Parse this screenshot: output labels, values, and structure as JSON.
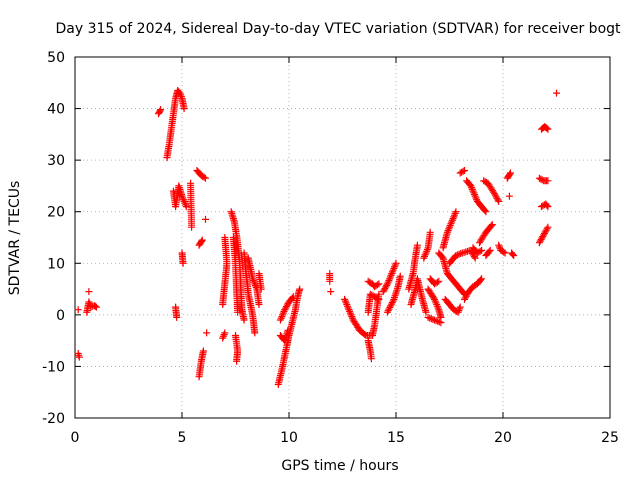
{
  "chart_data": {
    "type": "scatter",
    "title": "Day 315 of 2024, Sidereal Day-to-day VTEC variation (SDTVAR) for receiver bogt",
    "xlabel": "GPS time / hours",
    "ylabel": "SDTVAR / TECUs",
    "xlim": [
      0,
      25
    ],
    "ylim": [
      -20,
      50
    ],
    "xticks": [
      0,
      5,
      10,
      15,
      20,
      25
    ],
    "yticks": [
      -20,
      -10,
      0,
      10,
      20,
      30,
      40,
      50
    ],
    "xtick_labels": [
      "0",
      "5",
      "10",
      "15",
      "20",
      "25"
    ],
    "ytick_labels": [
      "-20",
      "-10",
      "0",
      "10",
      "20",
      "30",
      "40",
      "50"
    ],
    "grid": true,
    "marker": "+",
    "color": "#ff0000",
    "segments": [
      [
        [
          0.15,
          1.0
        ]
      ],
      [
        [
          0.15,
          -7.5
        ],
        [
          0.2,
          -8.2
        ]
      ],
      [
        [
          0.55,
          0.5
        ],
        [
          0.65,
          2.5
        ],
        [
          0.75,
          1.5
        ],
        [
          0.9,
          1.8
        ],
        [
          1.0,
          1.5
        ]
      ],
      [
        [
          0.65,
          4.5
        ]
      ],
      [
        [
          3.9,
          39.0
        ],
        [
          4.0,
          39.8
        ]
      ],
      [
        [
          4.3,
          30.5
        ],
        [
          4.4,
          33.0
        ],
        [
          4.5,
          36.0
        ],
        [
          4.6,
          39.0
        ],
        [
          4.7,
          42.0
        ],
        [
          4.8,
          43.5
        ],
        [
          4.9,
          43.0
        ],
        [
          5.0,
          42.0
        ],
        [
          5.1,
          40.0
        ]
      ],
      [
        [
          4.6,
          24.0
        ],
        [
          4.7,
          21.0
        ],
        [
          4.85,
          25.0
        ],
        [
          5.0,
          23.0
        ],
        [
          5.2,
          21.0
        ]
      ],
      [
        [
          4.7,
          1.5
        ],
        [
          4.75,
          -0.5
        ]
      ],
      [
        [
          5.0,
          12.0
        ],
        [
          5.05,
          10.0
        ]
      ],
      [
        [
          5.4,
          25.5
        ],
        [
          5.45,
          17.0
        ]
      ],
      [
        [
          5.7,
          28.0
        ],
        [
          5.9,
          27.0
        ],
        [
          6.1,
          26.5
        ]
      ],
      [
        [
          5.8,
          13.5
        ],
        [
          5.95,
          14.5
        ]
      ],
      [
        [
          6.1,
          18.5
        ]
      ],
      [
        [
          6.15,
          -3.5
        ]
      ],
      [
        [
          5.8,
          -12.0
        ],
        [
          5.9,
          -9.0
        ],
        [
          6.0,
          -7.0
        ]
      ],
      [
        [
          6.9,
          -4.5
        ],
        [
          7.0,
          -3.5
        ]
      ],
      [
        [
          6.9,
          2.0
        ],
        [
          7.0,
          6.0
        ],
        [
          7.1,
          10.0
        ],
        [
          7.0,
          15.0
        ]
      ],
      [
        [
          7.3,
          20.0
        ],
        [
          7.45,
          18.0
        ],
        [
          7.6,
          14.0
        ],
        [
          7.7,
          10.0
        ],
        [
          7.75,
          5.0
        ],
        [
          7.8,
          1.0
        ],
        [
          7.9,
          -1.0
        ]
      ],
      [
        [
          7.4,
          15.0
        ],
        [
          7.5,
          10.0
        ],
        [
          7.55,
          5.0
        ],
        [
          7.6,
          0.5
        ]
      ],
      [
        [
          7.5,
          -4.0
        ],
        [
          7.6,
          -7.0
        ],
        [
          7.55,
          -9.0
        ]
      ],
      [
        [
          7.9,
          12.0
        ],
        [
          8.0,
          8.0
        ],
        [
          8.1,
          4.0
        ],
        [
          8.3,
          0.0
        ],
        [
          8.4,
          -3.5
        ]
      ],
      [
        [
          8.1,
          11.0
        ],
        [
          8.3,
          7.0
        ],
        [
          8.5,
          5.0
        ],
        [
          8.6,
          2.0
        ]
      ],
      [
        [
          8.6,
          8.0
        ],
        [
          8.7,
          5.0
        ]
      ],
      [
        [
          9.5,
          -13.5
        ],
        [
          9.7,
          -10.0
        ],
        [
          9.9,
          -6.0
        ],
        [
          10.0,
          -4.0
        ],
        [
          10.15,
          -1.5
        ],
        [
          10.3,
          1.0
        ],
        [
          10.4,
          3.5
        ],
        [
          10.5,
          5.0
        ]
      ],
      [
        [
          9.6,
          -1.0
        ],
        [
          9.8,
          1.0
        ],
        [
          10.0,
          2.5
        ],
        [
          10.2,
          3.5
        ]
      ],
      [
        [
          9.6,
          -4.0
        ],
        [
          9.8,
          -5.0
        ],
        [
          9.95,
          -3.0
        ]
      ],
      [
        [
          11.9,
          8.0
        ],
        [
          11.9,
          6.5
        ]
      ],
      [
        [
          11.95,
          4.5
        ]
      ],
      [
        [
          12.6,
          3.0
        ],
        [
          12.8,
          1.0
        ],
        [
          13.0,
          -1.0
        ],
        [
          13.3,
          -3.0
        ],
        [
          13.6,
          -4.0
        ],
        [
          13.9,
          -4.0
        ],
        [
          14.0,
          -2.0
        ],
        [
          14.1,
          1.0
        ],
        [
          14.2,
          4.0
        ]
      ],
      [
        [
          13.7,
          -5.0
        ],
        [
          13.8,
          -7.0
        ],
        [
          13.85,
          -8.5
        ]
      ],
      [
        [
          13.7,
          6.5
        ],
        [
          13.9,
          6.0
        ],
        [
          14.0,
          5.5
        ],
        [
          14.2,
          6.0
        ]
      ],
      [
        [
          13.7,
          0.5
        ],
        [
          13.8,
          4.0
        ],
        [
          14.0,
          3.5
        ],
        [
          14.2,
          3.0
        ]
      ],
      [
        [
          14.4,
          4.5
        ],
        [
          14.6,
          6.0
        ],
        [
          14.8,
          8.0
        ],
        [
          15.0,
          10.0
        ]
      ],
      [
        [
          14.6,
          0.5
        ],
        [
          14.9,
          3.0
        ],
        [
          15.1,
          5.5
        ],
        [
          15.2,
          7.5
        ]
      ],
      [
        [
          15.6,
          5.0
        ],
        [
          15.8,
          8.0
        ],
        [
          15.9,
          11.0
        ],
        [
          16.0,
          13.5
        ]
      ],
      [
        [
          15.7,
          2.0
        ],
        [
          15.9,
          5.0
        ],
        [
          16.0,
          7.0
        ],
        [
          16.2,
          3.5
        ],
        [
          16.4,
          0.5
        ]
      ],
      [
        [
          16.3,
          11.0
        ],
        [
          16.5,
          13.0
        ],
        [
          16.6,
          16.0
        ]
      ],
      [
        [
          16.5,
          5.0
        ],
        [
          16.8,
          3.0
        ],
        [
          17.0,
          1.0
        ],
        [
          17.1,
          -0.5
        ]
      ],
      [
        [
          16.6,
          7.0
        ],
        [
          16.8,
          6.0
        ],
        [
          17.0,
          6.5
        ]
      ],
      [
        [
          16.5,
          -0.5
        ],
        [
          16.8,
          -1.0
        ],
        [
          17.1,
          -1.5
        ]
      ],
      [
        [
          17.0,
          12.0
        ],
        [
          17.2,
          11.0
        ],
        [
          17.4,
          8.0
        ],
        [
          17.6,
          7.0
        ],
        [
          17.8,
          6.0
        ],
        [
          18.0,
          5.0
        ],
        [
          18.2,
          4.0
        ]
      ],
      [
        [
          17.2,
          13.0
        ],
        [
          17.4,
          16.0
        ],
        [
          17.6,
          18.0
        ],
        [
          17.8,
          20.0
        ]
      ],
      [
        [
          17.3,
          3.0
        ],
        [
          17.5,
          2.0
        ],
        [
          17.7,
          1.0
        ],
        [
          17.9,
          0.5
        ],
        [
          18.0,
          1.5
        ]
      ],
      [
        [
          17.5,
          10.0
        ],
        [
          17.8,
          11.5
        ],
        [
          18.1,
          12.0
        ],
        [
          18.5,
          12.5
        ],
        [
          18.7,
          11.0
        ]
      ],
      [
        [
          18.0,
          27.5
        ],
        [
          18.2,
          28.0
        ]
      ],
      [
        [
          18.3,
          26.0
        ],
        [
          18.5,
          25.0
        ],
        [
          18.8,
          22.0
        ],
        [
          19.0,
          21.0
        ],
        [
          19.2,
          20.0
        ]
      ],
      [
        [
          18.6,
          13.0
        ],
        [
          18.8,
          12.0
        ],
        [
          19.0,
          12.5
        ]
      ],
      [
        [
          18.2,
          3.0
        ],
        [
          18.4,
          4.5
        ],
        [
          18.6,
          5.5
        ],
        [
          18.8,
          6.0
        ],
        [
          19.0,
          7.0
        ]
      ],
      [
        [
          18.9,
          14.0
        ],
        [
          19.2,
          16.0
        ],
        [
          19.5,
          17.5
        ]
      ],
      [
        [
          19.1,
          26.0
        ],
        [
          19.3,
          25.5
        ],
        [
          19.6,
          23.5
        ],
        [
          19.8,
          22.0
        ]
      ],
      [
        [
          19.2,
          11.5
        ],
        [
          19.4,
          12.5
        ]
      ],
      [
        [
          19.8,
          13.5
        ],
        [
          19.9,
          12.5
        ],
        [
          20.1,
          12.0
        ]
      ],
      [
        [
          20.2,
          26.5
        ],
        [
          20.35,
          27.5
        ]
      ],
      [
        [
          20.3,
          23.0
        ]
      ],
      [
        [
          20.4,
          12.0
        ],
        [
          20.5,
          11.5
        ]
      ],
      [
        [
          21.7,
          26.5
        ],
        [
          21.9,
          26.0
        ],
        [
          22.1,
          26.0
        ]
      ],
      [
        [
          21.8,
          36.0
        ],
        [
          21.95,
          36.5
        ],
        [
          22.1,
          36.0
        ]
      ],
      [
        [
          21.8,
          21.0
        ],
        [
          22.0,
          21.5
        ],
        [
          22.1,
          21.0
        ]
      ],
      [
        [
          21.7,
          14.0
        ],
        [
          21.9,
          15.5
        ],
        [
          22.1,
          17.0
        ]
      ],
      [
        [
          22.5,
          43.0
        ]
      ]
    ]
  }
}
